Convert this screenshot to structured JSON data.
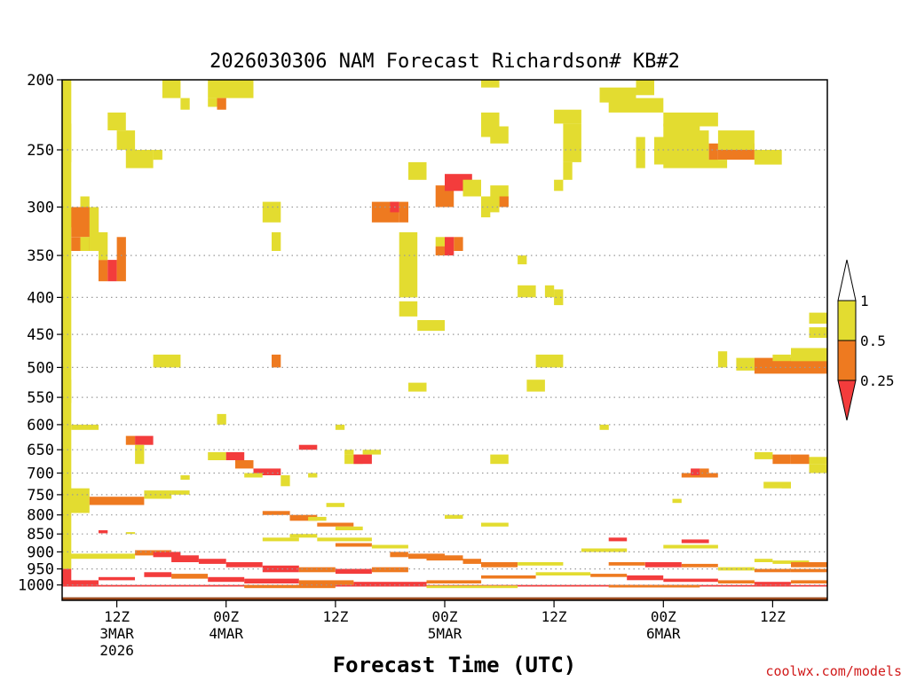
{
  "chart_data": {
    "type": "heatmap",
    "title": "2026030306 NAM Forecast Richardson# KB#2",
    "xlabel": "Forecast Time (UTC)",
    "ylabel": "",
    "credit": "coolwx.com/models",
    "x_range_hours": [
      0,
      84
    ],
    "y_axis": {
      "scale": "log-pressure",
      "range_hPa": [
        1050,
        200
      ],
      "ticks": [
        "200",
        "250",
        "300",
        "350",
        "400",
        "450",
        "500",
        "550",
        "600",
        "650",
        "700",
        "750",
        "800",
        "850",
        "900",
        "950",
        "1000"
      ]
    },
    "x_ticks": [
      {
        "hour": 6,
        "lines": [
          "12Z",
          "3MAR",
          "2026"
        ]
      },
      {
        "hour": 18,
        "lines": [
          "00Z",
          "4MAR"
        ]
      },
      {
        "hour": 30,
        "lines": [
          "12Z"
        ]
      },
      {
        "hour": 42,
        "lines": [
          "00Z",
          "5MAR"
        ]
      },
      {
        "hour": 54,
        "lines": [
          "12Z"
        ]
      },
      {
        "hour": 66,
        "lines": [
          "00Z",
          "6MAR"
        ]
      },
      {
        "hour": 78,
        "lines": [
          "12Z"
        ]
      }
    ],
    "legend": {
      "placement": "right",
      "levels": [
        "1",
        "0.5",
        "0.25"
      ],
      "colors": {
        "lt_0_25": "#f33c3c",
        "0_25_0_5": "#ee7a20",
        "0_5_1": "#e3dc30",
        "surface": "#9a4a1e"
      }
    },
    "category_key": {
      "1": "0.5 - 1",
      "2": "0.25 - 0.5",
      "3": "< 0.25"
    },
    "cells": [
      [
        0,
        1,
        200,
        950,
        1
      ],
      [
        0,
        1,
        950,
        1000,
        3
      ],
      [
        0,
        1,
        230,
        260,
        1
      ],
      [
        0,
        1,
        520,
        560,
        1
      ],
      [
        0,
        2,
        300,
        320,
        1
      ],
      [
        1,
        4,
        300,
        330,
        2
      ],
      [
        1,
        4,
        330,
        345,
        2
      ],
      [
        2,
        3,
        330,
        345,
        1
      ],
      [
        2,
        3,
        290,
        300,
        1
      ],
      [
        3,
        4,
        300,
        345,
        1
      ],
      [
        4,
        5,
        355,
        380,
        2
      ],
      [
        4,
        5,
        325,
        355,
        1
      ],
      [
        5,
        6,
        355,
        380,
        3
      ],
      [
        6,
        7,
        330,
        380,
        2
      ],
      [
        5,
        7,
        222,
        235,
        1
      ],
      [
        6,
        8,
        235,
        250,
        1
      ],
      [
        7,
        10,
        250,
        265,
        1
      ],
      [
        10,
        11,
        250,
        258,
        1
      ],
      [
        0,
        3,
        735,
        795,
        1
      ],
      [
        3,
        9,
        755,
        775,
        2
      ],
      [
        9,
        12,
        740,
        760,
        1
      ],
      [
        12,
        14,
        740,
        750,
        1
      ],
      [
        1,
        4,
        600,
        610,
        1
      ],
      [
        7,
        8,
        622,
        640,
        2
      ],
      [
        8,
        10,
        622,
        640,
        3
      ],
      [
        8,
        9,
        640,
        680,
        1
      ],
      [
        4,
        5,
        840,
        848,
        3
      ],
      [
        7,
        8,
        845,
        850,
        1
      ],
      [
        0,
        8,
        905,
        920,
        1
      ],
      [
        8,
        12,
        895,
        910,
        2
      ],
      [
        10,
        13,
        900,
        915,
        3
      ],
      [
        12,
        15,
        910,
        930,
        3
      ],
      [
        15,
        18,
        920,
        935,
        3
      ],
      [
        18,
        22,
        930,
        945,
        3
      ],
      [
        22,
        26,
        940,
        960,
        3
      ],
      [
        26,
        30,
        945,
        960,
        2
      ],
      [
        30,
        34,
        950,
        965,
        3
      ],
      [
        34,
        38,
        945,
        960,
        2
      ],
      [
        0,
        4,
        985,
        1000,
        3
      ],
      [
        4,
        8,
        975,
        985,
        3
      ],
      [
        9,
        12,
        960,
        975,
        3
      ],
      [
        12,
        16,
        965,
        980,
        2
      ],
      [
        16,
        20,
        975,
        990,
        3
      ],
      [
        20,
        26,
        980,
        995,
        3
      ],
      [
        26,
        32,
        985,
        1000,
        2
      ],
      [
        32,
        40,
        990,
        1005,
        3
      ],
      [
        40,
        46,
        985,
        995,
        2
      ],
      [
        46,
        52,
        970,
        980,
        2
      ],
      [
        52,
        58,
        960,
        970,
        1
      ],
      [
        58,
        62,
        965,
        975,
        2
      ],
      [
        62,
        66,
        970,
        985,
        3
      ],
      [
        66,
        72,
        980,
        990,
        3
      ],
      [
        72,
        76,
        985,
        995,
        2
      ],
      [
        76,
        80,
        990,
        1000,
        3
      ],
      [
        80,
        84,
        985,
        995,
        2
      ],
      [
        0,
        84,
        1000,
        1005,
        3
      ],
      [
        20,
        30,
        1000,
        1010,
        2
      ],
      [
        40,
        50,
        1002,
        1010,
        1
      ],
      [
        60,
        70,
        1000,
        1008,
        2
      ],
      [
        11,
        13,
        200,
        212,
        1
      ],
      [
        16,
        17,
        200,
        212,
        1
      ],
      [
        17,
        21,
        200,
        212,
        1
      ],
      [
        16,
        17,
        212,
        218,
        1
      ],
      [
        17,
        18,
        212,
        220,
        2
      ],
      [
        13,
        14,
        212,
        220,
        1
      ],
      [
        22,
        24,
        295,
        315,
        1
      ],
      [
        23,
        24,
        325,
        345,
        1
      ],
      [
        10,
        13,
        480,
        500,
        1
      ],
      [
        23,
        24,
        480,
        500,
        2
      ],
      [
        16,
        18,
        655,
        672,
        1
      ],
      [
        18,
        20,
        655,
        672,
        3
      ],
      [
        19,
        21,
        672,
        690,
        2
      ],
      [
        21,
        24,
        690,
        705,
        3
      ],
      [
        17,
        18,
        580,
        600,
        1
      ],
      [
        20,
        22,
        700,
        710,
        1
      ],
      [
        13,
        14,
        705,
        715,
        1
      ],
      [
        24,
        25,
        705,
        730,
        1
      ],
      [
        22,
        25,
        790,
        800,
        2
      ],
      [
        25,
        28,
        800,
        815,
        2
      ],
      [
        27,
        29,
        805,
        815,
        1
      ],
      [
        28,
        32,
        820,
        830,
        2
      ],
      [
        30,
        33,
        830,
        840,
        1
      ],
      [
        29,
        31,
        770,
        780,
        1
      ],
      [
        31,
        32,
        650,
        660,
        1
      ],
      [
        26,
        28,
        640,
        650,
        3
      ],
      [
        27,
        28,
        700,
        710,
        1
      ],
      [
        25,
        28,
        850,
        860,
        1
      ],
      [
        22,
        26,
        860,
        870,
        1
      ],
      [
        28,
        34,
        860,
        870,
        1
      ],
      [
        30,
        34,
        875,
        885,
        2
      ],
      [
        34,
        38,
        880,
        890,
        1
      ],
      [
        34,
        37,
        295,
        315,
        2
      ],
      [
        36,
        37,
        295,
        305,
        3
      ],
      [
        37,
        38,
        295,
        315,
        2
      ],
      [
        37,
        39,
        325,
        400,
        1
      ],
      [
        37,
        39,
        405,
        425,
        1
      ],
      [
        39,
        42,
        430,
        445,
        1
      ],
      [
        38,
        40,
        260,
        275,
        1
      ],
      [
        41,
        42,
        330,
        340,
        1
      ],
      [
        41,
        42,
        340,
        350,
        2
      ],
      [
        42,
        43,
        330,
        350,
        3
      ],
      [
        43,
        44,
        330,
        345,
        2
      ],
      [
        41,
        43,
        280,
        300,
        2
      ],
      [
        42,
        45,
        270,
        285,
        3
      ],
      [
        44,
        46,
        275,
        290,
        1
      ],
      [
        46,
        48,
        290,
        305,
        1
      ],
      [
        47,
        49,
        280,
        300,
        1
      ],
      [
        48,
        49,
        290,
        300,
        2
      ],
      [
        46,
        47,
        300,
        310,
        1
      ],
      [
        46,
        48,
        200,
        205,
        1
      ],
      [
        46,
        48,
        222,
        240,
        1
      ],
      [
        47,
        49,
        232,
        245,
        1
      ],
      [
        38,
        40,
        525,
        540,
        1
      ],
      [
        30,
        31,
        600,
        610,
        1
      ],
      [
        31,
        33,
        660,
        680,
        1
      ],
      [
        32,
        34,
        660,
        680,
        3
      ],
      [
        33,
        35,
        650,
        660,
        1
      ],
      [
        36,
        38,
        900,
        915,
        2
      ],
      [
        38,
        42,
        905,
        920,
        2
      ],
      [
        40,
        44,
        910,
        925,
        2
      ],
      [
        44,
        46,
        920,
        935,
        2
      ],
      [
        46,
        50,
        930,
        945,
        2
      ],
      [
        50,
        55,
        930,
        940,
        1
      ],
      [
        42,
        44,
        800,
        810,
        1
      ],
      [
        47,
        49,
        660,
        680,
        1
      ],
      [
        46,
        49,
        820,
        830,
        1
      ],
      [
        50,
        51,
        350,
        360,
        1
      ],
      [
        50,
        52,
        385,
        400,
        1
      ],
      [
        53,
        54,
        385,
        400,
        1
      ],
      [
        54,
        55,
        390,
        410,
        1
      ],
      [
        54,
        57,
        220,
        230,
        1
      ],
      [
        55,
        57,
        230,
        260,
        1
      ],
      [
        55,
        56,
        260,
        275,
        1
      ],
      [
        54,
        55,
        275,
        285,
        1
      ],
      [
        52,
        55,
        480,
        500,
        1
      ],
      [
        51,
        53,
        520,
        540,
        1
      ],
      [
        59,
        60,
        600,
        610,
        1
      ],
      [
        60,
        62,
        860,
        870,
        3
      ],
      [
        57,
        62,
        890,
        900,
        1
      ],
      [
        60,
        64,
        930,
        940,
        2
      ],
      [
        64,
        68,
        930,
        945,
        3
      ],
      [
        68,
        72,
        935,
        945,
        2
      ],
      [
        72,
        76,
        945,
        955,
        1
      ],
      [
        76,
        80,
        950,
        960,
        2
      ],
      [
        80,
        84,
        950,
        960,
        2
      ],
      [
        59,
        63,
        205,
        215,
        1
      ],
      [
        60,
        66,
        212,
        222,
        1
      ],
      [
        63,
        65,
        200,
        210,
        1
      ],
      [
        63,
        64,
        240,
        265,
        1
      ],
      [
        65,
        67,
        240,
        262,
        1
      ],
      [
        66,
        70,
        230,
        245,
        1
      ],
      [
        66,
        72,
        222,
        232,
        1
      ],
      [
        67,
        71,
        235,
        260,
        1
      ],
      [
        67,
        68,
        245,
        262,
        1
      ],
      [
        71,
        72,
        245,
        262,
        2
      ],
      [
        72,
        76,
        245,
        258,
        2
      ],
      [
        72,
        76,
        235,
        250,
        1
      ],
      [
        76,
        79,
        250,
        262,
        1
      ],
      [
        66,
        73,
        258,
        265,
        1
      ],
      [
        68,
        72,
        700,
        710,
        2
      ],
      [
        69,
        70,
        690,
        705,
        3
      ],
      [
        70,
        71,
        690,
        705,
        2
      ],
      [
        67,
        68,
        760,
        770,
        1
      ],
      [
        66,
        72,
        880,
        890,
        1
      ],
      [
        68,
        71,
        865,
        875,
        3
      ],
      [
        72,
        73,
        475,
        500,
        1
      ],
      [
        74,
        76,
        485,
        505,
        1
      ],
      [
        76,
        84,
        485,
        510,
        2
      ],
      [
        78,
        80,
        480,
        490,
        1
      ],
      [
        80,
        84,
        470,
        490,
        1
      ],
      [
        82,
        84,
        440,
        455,
        1
      ],
      [
        82,
        84,
        420,
        435,
        1
      ],
      [
        76,
        78,
        655,
        670,
        1
      ],
      [
        78,
        80,
        660,
        680,
        2
      ],
      [
        80,
        82,
        660,
        680,
        2
      ],
      [
        82,
        84,
        665,
        680,
        1
      ],
      [
        82,
        84,
        680,
        700,
        1
      ],
      [
        77,
        80,
        720,
        735,
        1
      ],
      [
        79,
        80,
        725,
        735,
        1
      ],
      [
        76,
        78,
        920,
        930,
        1
      ],
      [
        78,
        82,
        925,
        935,
        1
      ],
      [
        80,
        84,
        930,
        945,
        2
      ]
    ]
  }
}
